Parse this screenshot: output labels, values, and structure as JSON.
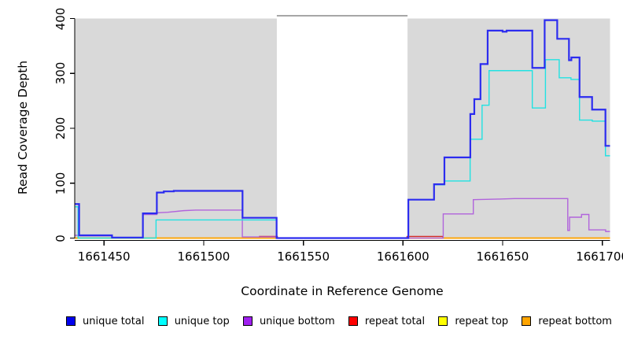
{
  "chart_data": {
    "type": "line",
    "subtype": "step",
    "title": "",
    "xlabel": "Coordinate in Reference Genome",
    "ylabel": "Read Coverage Depth",
    "xlim": [
      1661435.3,
      1661703.9
    ],
    "ylim": [
      0,
      400
    ],
    "grid": false,
    "legend_position": "bottom",
    "x_ticks": {
      "values": [
        1661450,
        1661500,
        1661550,
        1661600,
        1661650,
        1661700
      ],
      "labels": [
        "1661450",
        "1661500",
        "1661550",
        "1661600",
        "1661650",
        "1661700"
      ]
    },
    "y_ticks": {
      "values": [
        0,
        100,
        200,
        300,
        400
      ],
      "labels": [
        "0",
        "100",
        "200",
        "300",
        "400"
      ]
    },
    "shaded_regions": {
      "color": "#d9d9d9",
      "regions": [
        {
          "x1": 1661435.3,
          "x2": 1661536.7
        },
        {
          "x1": 1661602.3,
          "x2": 1661703.9
        }
      ]
    },
    "white_gap": {
      "x1": 1661536.7,
      "x2": 1661602.3,
      "top_border_color": "#888888"
    },
    "series": [
      {
        "name": "repeat top",
        "color": "#ffff00",
        "width": 1.2,
        "points": [
          [
            1661435.3,
            0
          ],
          [
            1661703.9,
            0
          ]
        ]
      },
      {
        "name": "repeat total",
        "color": "#d02a2a",
        "width": 1.2,
        "points": [
          [
            1661435.3,
            0
          ],
          [
            1661528,
            0
          ],
          [
            1661528,
            3
          ],
          [
            1661537,
            3
          ],
          [
            1661537,
            0
          ],
          [
            1661602,
            0
          ],
          [
            1661602,
            3
          ],
          [
            1661620,
            3
          ],
          [
            1661620,
            0
          ],
          [
            1661703.9,
            0
          ]
        ]
      },
      {
        "name": "repeat bottom",
        "color": "#ffa500",
        "width": 1.8,
        "points": [
          [
            1661435.3,
            0
          ],
          [
            1661703.9,
            0
          ]
        ]
      },
      {
        "name": "unique bottom",
        "color": "#b164dc",
        "width": 1.4,
        "points": [
          [
            1661435.3,
            5
          ],
          [
            1661437.5,
            5
          ],
          [
            1661437.5,
            4
          ],
          [
            1661454,
            4
          ],
          [
            1661454,
            1
          ],
          [
            1661469.5,
            1
          ],
          [
            1661469.5,
            43
          ],
          [
            1661476.5,
            43
          ],
          [
            1661476.5,
            46
          ],
          [
            1661482,
            47
          ],
          [
            1661490,
            50
          ],
          [
            1661496,
            51
          ],
          [
            1661519.4,
            51
          ],
          [
            1661519.4,
            2
          ],
          [
            1661536.6,
            2
          ],
          [
            1661536.6,
            0
          ],
          [
            1661620.2,
            0
          ],
          [
            1661620.2,
            44
          ],
          [
            1661635.3,
            44
          ],
          [
            1661635.3,
            70
          ],
          [
            1661648,
            71
          ],
          [
            1661656,
            72
          ],
          [
            1661682.7,
            72
          ],
          [
            1661682.7,
            14
          ],
          [
            1661683.6,
            14
          ],
          [
            1661683.6,
            38
          ],
          [
            1661689.6,
            38
          ],
          [
            1661689.6,
            43
          ],
          [
            1661693.3,
            43
          ],
          [
            1661693.3,
            15
          ],
          [
            1661701.7,
            15
          ],
          [
            1661701.7,
            12
          ],
          [
            1661703.9,
            12
          ]
        ]
      },
      {
        "name": "unique top",
        "color": "#21e2e2",
        "width": 1.4,
        "points": [
          [
            1661435.3,
            57
          ],
          [
            1661437,
            57
          ],
          [
            1661437,
            0
          ],
          [
            1661476.1,
            0
          ],
          [
            1661476.1,
            33
          ],
          [
            1661536.6,
            33
          ],
          [
            1661536.6,
            0
          ],
          [
            1661602.7,
            0
          ],
          [
            1661602.7,
            70
          ],
          [
            1661615.6,
            70
          ],
          [
            1661615.6,
            97
          ],
          [
            1661620.8,
            97
          ],
          [
            1661620.8,
            104
          ],
          [
            1661633.7,
            104
          ],
          [
            1661633.7,
            180
          ],
          [
            1661639.7,
            180
          ],
          [
            1661639.7,
            242
          ],
          [
            1661643.2,
            242
          ],
          [
            1661643.2,
            305
          ],
          [
            1661664.9,
            305
          ],
          [
            1661664.9,
            237
          ],
          [
            1661671.5,
            237
          ],
          [
            1661671.5,
            325
          ],
          [
            1661678.4,
            325
          ],
          [
            1661678.4,
            292
          ],
          [
            1661684.3,
            292
          ],
          [
            1661684.3,
            289
          ],
          [
            1661688.6,
            289
          ],
          [
            1661688.6,
            215
          ],
          [
            1661695,
            215
          ],
          [
            1661695,
            213
          ],
          [
            1661701.6,
            213
          ],
          [
            1661701.6,
            150
          ],
          [
            1661703.9,
            150
          ]
        ]
      },
      {
        "name": "unique total",
        "color": "#2c2cef",
        "width": 2.2,
        "points": [
          [
            1661435.3,
            62
          ],
          [
            1661437.5,
            62
          ],
          [
            1661437.5,
            5
          ],
          [
            1661454,
            5
          ],
          [
            1661454,
            1
          ],
          [
            1661469.5,
            1
          ],
          [
            1661469.5,
            45
          ],
          [
            1661476.5,
            45
          ],
          [
            1661476.5,
            83
          ],
          [
            1661480,
            83
          ],
          [
            1661480,
            85
          ],
          [
            1661485,
            85
          ],
          [
            1661485,
            86
          ],
          [
            1661519.5,
            86
          ],
          [
            1661519.5,
            37
          ],
          [
            1661536.6,
            37
          ],
          [
            1661536.6,
            0
          ],
          [
            1661602.7,
            0
          ],
          [
            1661602.7,
            70
          ],
          [
            1661615.6,
            70
          ],
          [
            1661615.6,
            98
          ],
          [
            1661620.8,
            98
          ],
          [
            1661620.8,
            147
          ],
          [
            1661633.8,
            147
          ],
          [
            1661633.8,
            226
          ],
          [
            1661635.8,
            226
          ],
          [
            1661635.8,
            253
          ],
          [
            1661638.9,
            253
          ],
          [
            1661638.9,
            317
          ],
          [
            1661642.5,
            317
          ],
          [
            1661642.5,
            378
          ],
          [
            1661650,
            378
          ],
          [
            1661650,
            376
          ],
          [
            1661652,
            376
          ],
          [
            1661652,
            378
          ],
          [
            1661664.9,
            378
          ],
          [
            1661664.9,
            310
          ],
          [
            1661671.1,
            310
          ],
          [
            1661671.1,
            397
          ],
          [
            1661677.4,
            397
          ],
          [
            1661677.4,
            363
          ],
          [
            1661683.3,
            363
          ],
          [
            1661683.3,
            324
          ],
          [
            1661684.5,
            324
          ],
          [
            1661684.5,
            329
          ],
          [
            1661688.6,
            329
          ],
          [
            1661688.6,
            257
          ],
          [
            1661694.9,
            257
          ],
          [
            1661694.9,
            234
          ],
          [
            1661701.6,
            234
          ],
          [
            1661701.6,
            168
          ],
          [
            1661703.9,
            168
          ]
        ]
      }
    ]
  },
  "legend": {
    "items": [
      {
        "label": "unique total",
        "color": "#0000ee"
      },
      {
        "label": "unique top",
        "color": "#00ffff"
      },
      {
        "label": "unique bottom",
        "color": "#a020f0"
      },
      {
        "label": "repeat total",
        "color": "#ff0000"
      },
      {
        "label": "repeat top",
        "color": "#ffff00"
      },
      {
        "label": "repeat bottom",
        "color": "#ffa500"
      }
    ]
  }
}
